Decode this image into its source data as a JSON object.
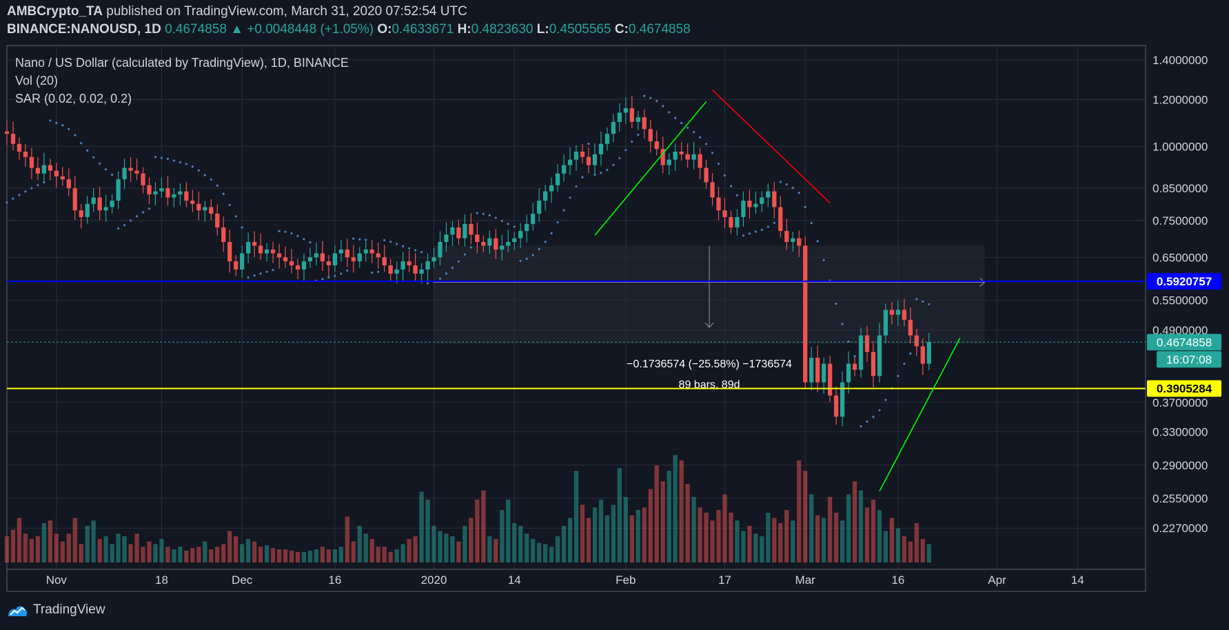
{
  "header": {
    "publisher": "AMBCrypto_TA",
    "published_text": "published on TradingView.com, March 31, 2020 07:52:54 UTC",
    "symbol": "BINANCE:NANOUSD, 1D",
    "last": "0.4674858",
    "change": "+0.0048448 (+1.05%)",
    "o_label": "O:",
    "o": "0.4633671",
    "h_label": "H:",
    "h": "0.4823630",
    "l_label": "L:",
    "l": "0.4505565",
    "c_label": "C:",
    "c": "0.4674858"
  },
  "legend": {
    "title": "Nano / US Dollar (calculated by TradingView), 1D, BINANCE",
    "vol": "Vol (20)",
    "sar": "SAR (0.02, 0.02, 0.2)"
  },
  "footer": {
    "brand": "TradingView"
  },
  "colors": {
    "up": "#26a69a",
    "down": "#ef5350",
    "bg": "#131722",
    "blue_line": "#0000ff",
    "yellow_line": "#ffff00",
    "sar": "#4c7fbf"
  },
  "chart_data": {
    "type": "candlestick",
    "y_scale": "log",
    "ylim": [
      0.2583,
      1.48
    ],
    "y_ticks": [
      "1.4000000",
      "1.2000000",
      "1.0000000",
      "0.8500000",
      "0.7500000",
      "0.6500000",
      "0.5500000",
      "0.4900000",
      "0.3700000",
      "0.3300000",
      "0.2900000",
      "0.2550000",
      "0.2270000"
    ],
    "x_ticks": [
      "Nov",
      "18",
      "Dec",
      "16",
      "2020",
      "14",
      "Feb",
      "17",
      "Mar",
      "16",
      "Apr",
      "14"
    ],
    "x_tick_dates": [
      "2019-11-01",
      "2019-11-18",
      "2019-12-01",
      "2019-12-16",
      "2020-01-01",
      "2020-01-14",
      "2020-02-01",
      "2020-02-17",
      "2020-03-01",
      "2020-03-16",
      "2020-04-01",
      "2020-04-14"
    ],
    "x_range": [
      "2019-10-24",
      "2020-04-25"
    ],
    "horizontal_lines": [
      {
        "value": 0.5920757,
        "label": "0.5920757",
        "color": "#0000ff",
        "text_color": "#ffffff"
      },
      {
        "value": 0.3905284,
        "label": "0.3905284",
        "color": "#ffff00",
        "text_color": "#000000"
      }
    ],
    "last_price": {
      "value": 0.4674858,
      "label": "0.4674858",
      "countdown": "16:07:08"
    },
    "measure": {
      "from_date": "2020-01-01",
      "to_date": "2020-03-30",
      "top": 0.68,
      "bottom": 0.59,
      "text": "−0.1736574 (−25.58%) −1736574",
      "bars_text": "89 bars, 89d"
    },
    "trendlines": [
      {
        "from": [
          "2020-01-27",
          0.708
        ],
        "to": [
          "2020-02-14",
          1.19
        ],
        "color": "#00ff00"
      },
      {
        "from": [
          "2020-02-15",
          1.245
        ],
        "to": [
          "2020-03-05",
          0.803
        ],
        "color": "#ff0000"
      },
      {
        "from": [
          "2020-03-13",
          0.262
        ],
        "to": [
          "2020-03-26",
          0.475
        ],
        "color": "#00ff00"
      }
    ],
    "closes": [
      0.88,
      0.8,
      0.84,
      0.86,
      0.83,
      0.86,
      0.87,
      0.89,
      0.87,
      0.9,
      0.88,
      0.86,
      0.85,
      0.9,
      0.96,
      1.01,
      1.07,
      1.05,
      1.02,
      1.01,
      1.04,
      1.07,
      1.06,
      1.05,
      1.01,
      0.98,
      0.96,
      0.92,
      0.9,
      0.93,
      0.91,
      0.89,
      0.88,
      0.85,
      0.78,
      0.76,
      0.8,
      0.82,
      0.78,
      0.79,
      0.81,
      0.88,
      0.92,
      0.91,
      0.9,
      0.86,
      0.83,
      0.84,
      0.85,
      0.82,
      0.83,
      0.84,
      0.81,
      0.8,
      0.78,
      0.79,
      0.77,
      0.73,
      0.69,
      0.64,
      0.62,
      0.66,
      0.69,
      0.68,
      0.66,
      0.67,
      0.66,
      0.65,
      0.64,
      0.63,
      0.62,
      0.64,
      0.65,
      0.66,
      0.64,
      0.63,
      0.66,
      0.67,
      0.65,
      0.64,
      0.66,
      0.67,
      0.66,
      0.65,
      0.63,
      0.61,
      0.62,
      0.64,
      0.63,
      0.61,
      0.62,
      0.64,
      0.65,
      0.69,
      0.71,
      0.73,
      0.7,
      0.74,
      0.71,
      0.69,
      0.68,
      0.7,
      0.67,
      0.68,
      0.69,
      0.7,
      0.72,
      0.74,
      0.77,
      0.81,
      0.84,
      0.86,
      0.9,
      0.93,
      0.95,
      0.98,
      0.96,
      0.93,
      0.97,
      1.01,
      1.05,
      1.1,
      1.14,
      1.16,
      1.1,
      1.12,
      1.07,
      1.02,
      0.99,
      0.93,
      0.95,
      0.98,
      0.97,
      0.95,
      0.97,
      0.92,
      0.87,
      0.82,
      0.78,
      0.76,
      0.73,
      0.76,
      0.81,
      0.79,
      0.8,
      0.82,
      0.84,
      0.79,
      0.72,
      0.69,
      0.7,
      0.68,
      0.4,
      0.44,
      0.4,
      0.43,
      0.38,
      0.35,
      0.4,
      0.43,
      0.42,
      0.48,
      0.45,
      0.41,
      0.48,
      0.53,
      0.52,
      0.53,
      0.51,
      0.48,
      0.46,
      0.43,
      0.4674858
    ],
    "volumes": [
      0.28,
      0.31,
      0.3,
      0.22,
      0.2,
      0.25,
      0.18,
      0.16,
      0.14,
      0.28,
      0.8,
      0.92,
      0.6,
      0.34,
      0.3,
      0.45,
      0.4,
      0.28,
      0.52,
      0.38,
      0.3,
      0.42,
      0.22,
      0.2,
      0.25,
      0.34,
      0.22,
      0.18,
      0.2,
      0.3,
      0.32,
      0.22,
      0.16,
      0.22,
      0.34,
      0.14,
      0.28,
      0.32,
      0.18,
      0.2,
      0.14,
      0.22,
      0.2,
      0.14,
      0.22,
      0.12,
      0.16,
      0.14,
      0.18,
      0.12,
      0.1,
      0.12,
      0.09,
      0.11,
      0.12,
      0.16,
      0.1,
      0.12,
      0.14,
      0.24,
      0.2,
      0.14,
      0.18,
      0.16,
      0.12,
      0.13,
      0.11,
      0.1,
      0.1,
      0.09,
      0.08,
      0.08,
      0.09,
      0.1,
      0.12,
      0.1,
      0.1,
      0.12,
      0.35,
      0.16,
      0.28,
      0.22,
      0.18,
      0.12,
      0.12,
      0.08,
      0.1,
      0.14,
      0.18,
      0.2,
      0.54,
      0.48,
      0.28,
      0.24,
      0.22,
      0.2,
      0.16,
      0.28,
      0.34,
      0.48,
      0.55,
      0.2,
      0.18,
      0.4,
      0.48,
      0.3,
      0.28,
      0.22,
      0.18,
      0.15,
      0.14,
      0.12,
      0.2,
      0.28,
      0.34,
      0.7,
      0.44,
      0.34,
      0.42,
      0.48,
      0.36,
      0.44,
      0.72,
      0.5,
      0.36,
      0.4,
      0.42,
      0.56,
      0.74,
      0.62,
      0.7,
      0.82,
      0.78,
      0.6,
      0.5,
      0.42,
      0.38,
      0.32,
      0.4,
      0.52,
      0.38,
      0.32,
      0.24,
      0.28,
      0.22,
      0.2,
      0.38,
      0.34,
      0.3,
      0.4,
      0.32,
      0.78,
      0.7,
      0.52,
      0.36,
      0.34,
      0.5,
      0.38,
      0.32,
      0.52,
      0.62,
      0.55,
      0.42,
      0.48,
      0.4,
      0.24,
      0.34,
      0.26,
      0.2,
      0.16,
      0.3,
      0.18,
      0.14
    ]
  }
}
